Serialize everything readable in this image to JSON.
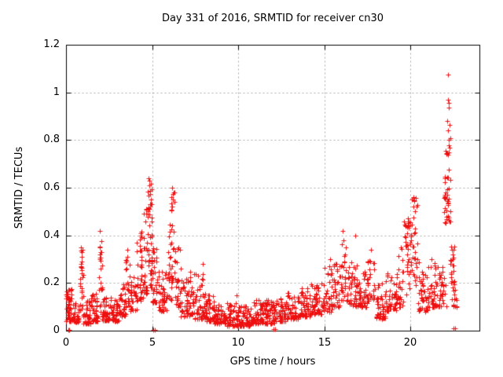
{
  "chart_data": {
    "type": "scatter",
    "title": "Day 331 of 2016, SRMTID for receiver cn30",
    "xlabel": "GPS time / hours",
    "ylabel": "SRMTID / TECUs",
    "xlim": [
      0,
      24
    ],
    "ylim": [
      0,
      1.2
    ],
    "xticks": [
      {
        "value": 0,
        "label": "0"
      },
      {
        "value": 5,
        "label": "5"
      },
      {
        "value": 10,
        "label": "10"
      },
      {
        "value": 15,
        "label": "15"
      },
      {
        "value": 20,
        "label": "20"
      }
    ],
    "yticks": [
      {
        "value": 0,
        "label": "0"
      },
      {
        "value": 0.2,
        "label": "0.2"
      },
      {
        "value": 0.4,
        "label": "0.4"
      },
      {
        "value": 0.6,
        "label": "0.6"
      },
      {
        "value": 0.8,
        "label": "0.8"
      },
      {
        "value": 1,
        "label": "1"
      },
      {
        "value": 1.2,
        "label": "1.2"
      }
    ],
    "grid": true,
    "legend": "none",
    "marker": "plus",
    "marker_color": "#ee1010",
    "grid_color": "#a8a8a8",
    "border_color": "#000000",
    "seed": 1331,
    "cluster_bins": [
      [
        0.0,
        0.35,
        40,
        0.04,
        0.18,
        1.8
      ],
      [
        0.05,
        0.18,
        8,
        0.09,
        0.17,
        1.0
      ],
      [
        0.35,
        0.75,
        35,
        0.03,
        0.12,
        1.8
      ],
      [
        0.8,
        1.0,
        22,
        0.08,
        0.35,
        1.3
      ],
      [
        1.0,
        1.45,
        45,
        0.03,
        0.13,
        1.8
      ],
      [
        1.45,
        1.85,
        40,
        0.04,
        0.16,
        1.8
      ],
      [
        1.9,
        2.1,
        18,
        0.08,
        0.4,
        1.5
      ],
      [
        2.1,
        2.6,
        45,
        0.04,
        0.14,
        1.8
      ],
      [
        2.6,
        3.1,
        45,
        0.04,
        0.13,
        1.8
      ],
      [
        3.1,
        3.45,
        30,
        0.06,
        0.2,
        1.6
      ],
      [
        3.45,
        3.65,
        15,
        0.1,
        0.34,
        1.5
      ],
      [
        3.65,
        4.1,
        35,
        0.08,
        0.28,
        1.6
      ],
      [
        4.1,
        4.5,
        40,
        0.12,
        0.43,
        1.5
      ],
      [
        4.5,
        4.75,
        30,
        0.15,
        0.52,
        1.3
      ],
      [
        4.75,
        5.0,
        40,
        0.18,
        0.62,
        1.2
      ],
      [
        5.0,
        5.3,
        30,
        0.12,
        0.35,
        1.6
      ],
      [
        5.3,
        5.85,
        45,
        0.08,
        0.25,
        1.8
      ],
      [
        5.85,
        6.1,
        25,
        0.12,
        0.45,
        1.4
      ],
      [
        6.1,
        6.3,
        22,
        0.2,
        0.6,
        1.2
      ],
      [
        6.3,
        6.65,
        28,
        0.1,
        0.35,
        1.6
      ],
      [
        6.65,
        7.15,
        40,
        0.06,
        0.22,
        1.8
      ],
      [
        7.15,
        7.45,
        25,
        0.07,
        0.27,
        1.7
      ],
      [
        7.45,
        8.1,
        50,
        0.05,
        0.26,
        2.0
      ],
      [
        8.1,
        8.6,
        40,
        0.04,
        0.15,
        2.0
      ],
      [
        8.6,
        9.3,
        55,
        0.03,
        0.11,
        1.8
      ],
      [
        9.3,
        10.0,
        55,
        0.02,
        0.12,
        1.8
      ],
      [
        10.0,
        10.7,
        55,
        0.02,
        0.12,
        1.8
      ],
      [
        10.7,
        11.4,
        55,
        0.03,
        0.13,
        1.8
      ],
      [
        11.4,
        12.1,
        55,
        0.03,
        0.13,
        1.8
      ],
      [
        12.1,
        12.8,
        55,
        0.04,
        0.15,
        1.8
      ],
      [
        12.8,
        13.5,
        50,
        0.05,
        0.16,
        1.8
      ],
      [
        13.5,
        14.2,
        50,
        0.06,
        0.18,
        1.8
      ],
      [
        14.2,
        14.9,
        50,
        0.07,
        0.2,
        1.8
      ],
      [
        14.9,
        15.45,
        40,
        0.08,
        0.27,
        1.8
      ],
      [
        15.45,
        15.95,
        35,
        0.1,
        0.3,
        1.7
      ],
      [
        15.95,
        16.45,
        35,
        0.12,
        0.37,
        1.5
      ],
      [
        16.45,
        17.0,
        40,
        0.1,
        0.3,
        1.7
      ],
      [
        17.0,
        17.5,
        40,
        0.1,
        0.25,
        1.8
      ],
      [
        17.5,
        17.95,
        30,
        0.12,
        0.32,
        1.5
      ],
      [
        17.95,
        18.55,
        45,
        0.05,
        0.2,
        1.8
      ],
      [
        18.55,
        19.2,
        45,
        0.08,
        0.25,
        1.8
      ],
      [
        19.2,
        19.6,
        28,
        0.1,
        0.35,
        1.5
      ],
      [
        19.6,
        20.0,
        30,
        0.15,
        0.47,
        1.4
      ],
      [
        20.0,
        20.45,
        35,
        0.18,
        0.56,
        1.1
      ],
      [
        20.45,
        21.0,
        40,
        0.08,
        0.3,
        1.7
      ],
      [
        21.0,
        21.6,
        40,
        0.1,
        0.3,
        1.7
      ],
      [
        21.6,
        22.1,
        30,
        0.1,
        0.28,
        1.7
      ],
      [
        21.95,
        22.35,
        45,
        0.45,
        0.82,
        1.6
      ],
      [
        22.3,
        22.55,
        18,
        0.2,
        0.36,
        1.3
      ],
      [
        22.4,
        22.7,
        15,
        0.1,
        0.2,
        1.5
      ]
    ],
    "outlier_points": [
      [
        0.12,
        0.004
      ],
      [
        0.2,
        0.004
      ],
      [
        5.08,
        0.004
      ],
      [
        5.16,
        0.004
      ],
      [
        12.04,
        0.006
      ],
      [
        12.14,
        0.006
      ],
      [
        22.5,
        0.01
      ],
      [
        22.57,
        0.01
      ],
      [
        0.88,
        0.35
      ],
      [
        0.9,
        0.31
      ],
      [
        0.87,
        0.27
      ],
      [
        0.89,
        0.24
      ],
      [
        1.96,
        0.42
      ],
      [
        1.98,
        0.35
      ],
      [
        2.0,
        0.33
      ],
      [
        1.97,
        0.3
      ],
      [
        2.02,
        0.26
      ],
      [
        3.55,
        0.34
      ],
      [
        3.57,
        0.31
      ],
      [
        4.79,
        0.64
      ],
      [
        4.82,
        0.63
      ],
      [
        4.85,
        0.61
      ],
      [
        4.76,
        0.585
      ],
      [
        4.88,
        0.575
      ],
      [
        4.92,
        0.55
      ],
      [
        6.17,
        0.6
      ],
      [
        6.2,
        0.575
      ],
      [
        6.22,
        0.55
      ],
      [
        6.15,
        0.52
      ],
      [
        7.92,
        0.28
      ],
      [
        9.9,
        0.15
      ],
      [
        15.35,
        0.3
      ],
      [
        16.05,
        0.42
      ],
      [
        16.1,
        0.38
      ],
      [
        16.8,
        0.4
      ],
      [
        17.7,
        0.34
      ],
      [
        19.45,
        0.35
      ],
      [
        19.85,
        0.47
      ],
      [
        19.9,
        0.44
      ],
      [
        20.18,
        0.56
      ],
      [
        20.22,
        0.545
      ],
      [
        20.15,
        0.52
      ],
      [
        20.25,
        0.5
      ],
      [
        21.2,
        0.3
      ],
      [
        22.18,
        1.075
      ],
      [
        22.16,
        0.97
      ],
      [
        22.2,
        0.955
      ],
      [
        22.23,
        0.935
      ],
      [
        22.15,
        0.88
      ],
      [
        22.25,
        0.865
      ],
      [
        22.19,
        0.84
      ],
      [
        22.21,
        0.8
      ],
      [
        22.4,
        0.34
      ],
      [
        22.45,
        0.3
      ]
    ]
  }
}
